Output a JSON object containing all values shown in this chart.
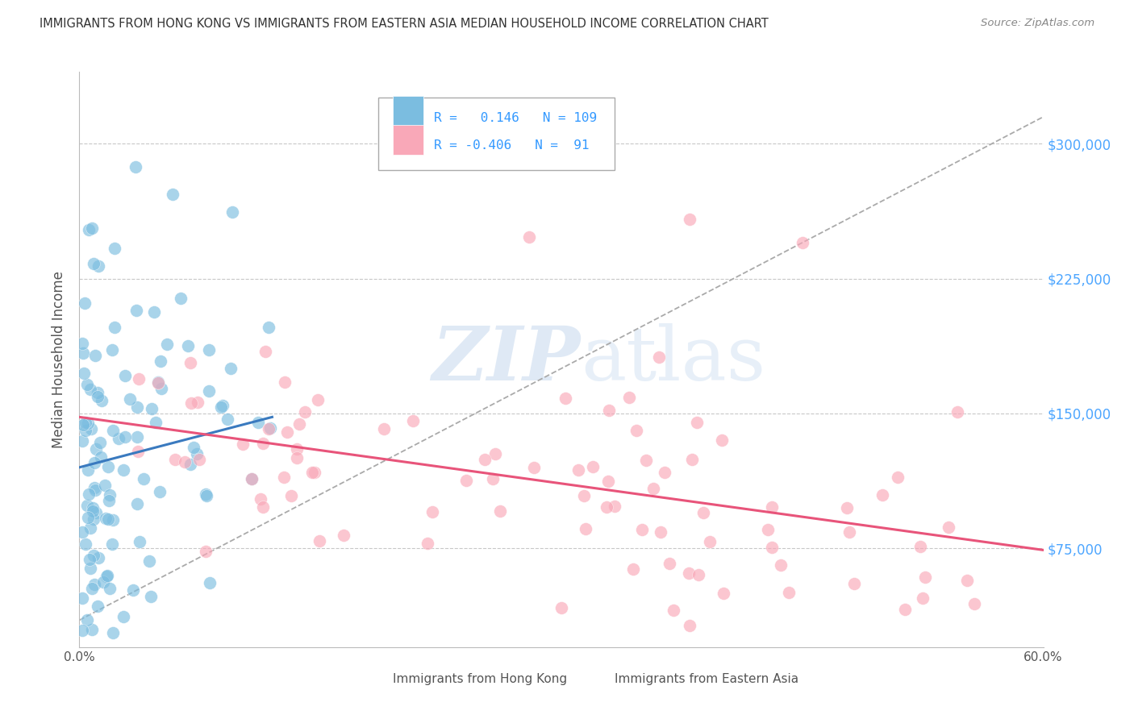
{
  "title": "IMMIGRANTS FROM HONG KONG VS IMMIGRANTS FROM EASTERN ASIA MEDIAN HOUSEHOLD INCOME CORRELATION CHART",
  "source": "Source: ZipAtlas.com",
  "ylabel": "Median Household Income",
  "xlim": [
    0.0,
    0.6
  ],
  "ylim": [
    20000,
    340000
  ],
  "yticks": [
    75000,
    150000,
    225000,
    300000
  ],
  "ytick_labels": [
    "$75,000",
    "$150,000",
    "$225,000",
    "$300,000"
  ],
  "xticks": [
    0.0,
    0.1,
    0.2,
    0.3,
    0.4,
    0.5,
    0.6
  ],
  "xtick_labels": [
    "0.0%",
    "",
    "",
    "",
    "",
    "",
    "60.0%"
  ],
  "hk_R": 0.146,
  "hk_N": 109,
  "ea_R": -0.406,
  "ea_N": 91,
  "hk_color": "#7bbde0",
  "ea_color": "#f9a8b8",
  "hk_trend_color": "#3a7abf",
  "ea_trend_color": "#e8547a",
  "background_color": "#ffffff",
  "grid_color": "#c8c8c8",
  "watermark_color": "#c5d8ee",
  "legend_label_hk": "Immigrants from Hong Kong",
  "legend_label_ea": "Immigrants from Eastern Asia",
  "title_color": "#333333",
  "axis_label_color": "#555555",
  "ytick_color": "#4da6ff",
  "source_color": "#888888",
  "legend_text_color": "#3399ff",
  "dashed_line_color": "#aaaaaa"
}
